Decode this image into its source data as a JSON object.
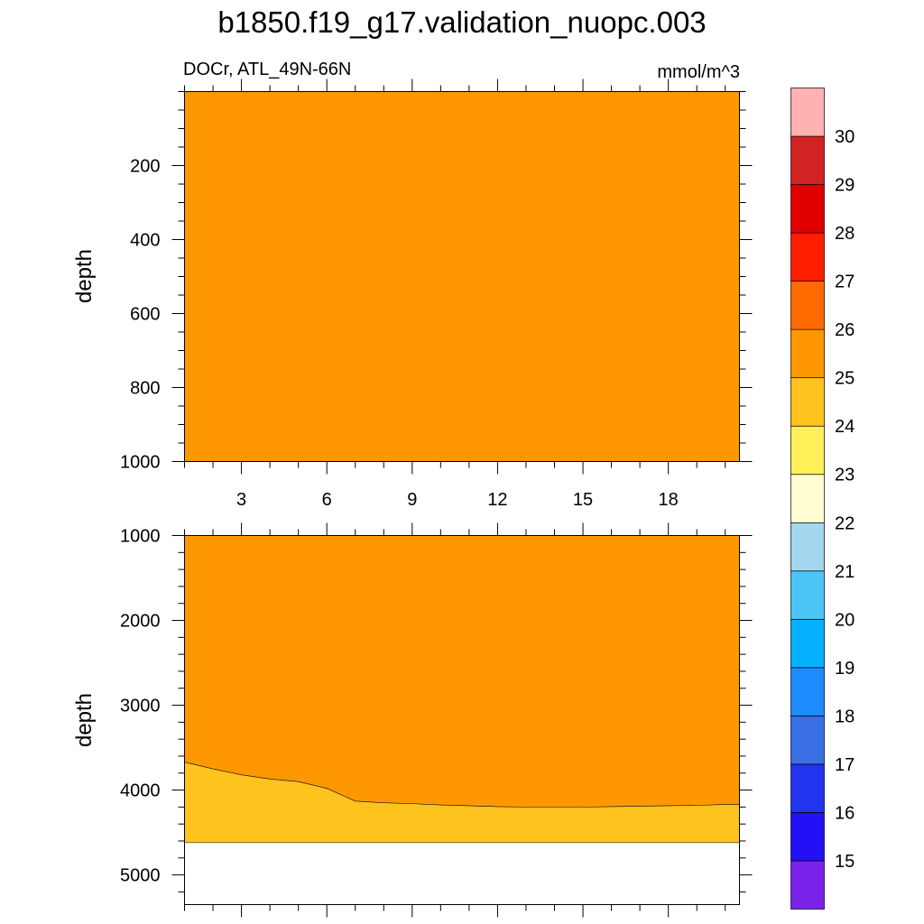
{
  "title": "b1850.f19_g17.validation_nuopc.003",
  "left_subtitle": "DOCr, ATL_49N-66N",
  "right_subtitle": "mmol/m^3",
  "colorbar": {
    "labels": [
      "15",
      "16",
      "17",
      "18",
      "19",
      "20",
      "21",
      "22",
      "23",
      "24",
      "25",
      "26",
      "27",
      "28",
      "29",
      "30"
    ],
    "colors": [
      "#7b22ea",
      "#2410f7",
      "#2234ee",
      "#3b6fe6",
      "#1e8cff",
      "#06b2ff",
      "#4cc5f6",
      "#a2d7ef",
      "#fefed2",
      "#fff05a",
      "#ffc31e",
      "#ff9800",
      "#ff6b00",
      "#ff1e00",
      "#e10000",
      "#d22222",
      "#ffb2b2"
    ]
  },
  "chart_data": [
    {
      "type": "heatmap",
      "subtype": "filled-contour",
      "panel": "upper",
      "ylabel": "depth",
      "xlim": [
        1,
        20.5
      ],
      "ylim": [
        0,
        1000
      ],
      "y_inverted": true,
      "x_ticks": [
        "3",
        "6",
        "9",
        "12",
        "15",
        "18"
      ],
      "x_tick_values": [
        3,
        6,
        9,
        12,
        15,
        18
      ],
      "y_ticks": [
        "200",
        "400",
        "600",
        "800",
        "1000"
      ],
      "y_tick_values": [
        200,
        400,
        600,
        800,
        1000
      ],
      "regions": [
        {
          "band": "25-26",
          "color": "#ff9800",
          "depth_top": 0,
          "depth_bottom": 1000
        }
      ]
    },
    {
      "type": "heatmap",
      "subtype": "filled-contour",
      "panel": "lower",
      "ylabel": "depth",
      "xlim": [
        1,
        20.5
      ],
      "ylim": [
        1000,
        5350
      ],
      "y_inverted": true,
      "y_ticks": [
        "1000",
        "2000",
        "3000",
        "4000",
        "5000"
      ],
      "y_tick_values": [
        1000,
        2000,
        3000,
        4000,
        5000
      ],
      "x_tick_values": [
        3,
        6,
        9,
        12,
        15,
        18
      ],
      "data_bottom_depth": 4620,
      "contour_25": {
        "x": [
          1,
          2,
          3,
          4,
          5,
          6,
          7,
          8,
          9,
          10,
          11,
          12,
          13,
          14,
          15,
          16,
          17,
          18,
          19,
          20,
          20.5
        ],
        "depth": [
          3670,
          3750,
          3820,
          3870,
          3900,
          3980,
          4130,
          4150,
          4160,
          4175,
          4185,
          4195,
          4200,
          4200,
          4200,
          4195,
          4190,
          4185,
          4180,
          4170,
          4170
        ]
      },
      "regions": [
        {
          "band": "25-26",
          "color": "#ff9800",
          "above_contour": true
        },
        {
          "band": "24-25",
          "color": "#ffc31e",
          "below_contour": true
        }
      ]
    }
  ]
}
